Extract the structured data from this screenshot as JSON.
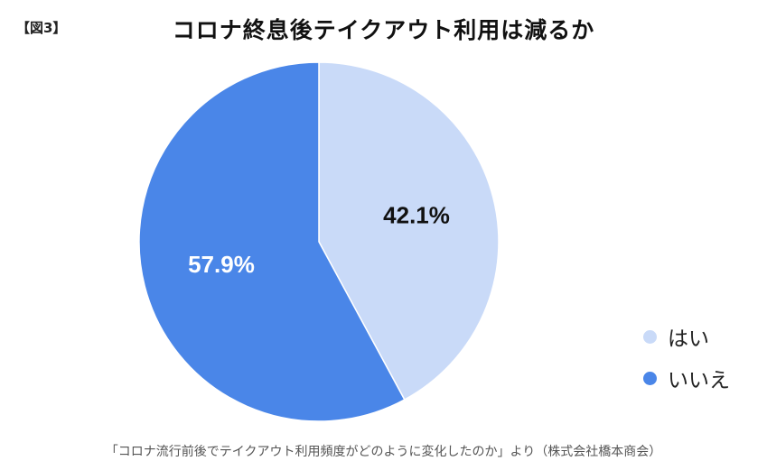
{
  "header": {
    "figure_tag": "【図3】",
    "title": "コロナ終息後テイクアウト利用は減るか"
  },
  "footer": {
    "source": "「コロナ流行前後でテイクアウト利用頻度がどのように変化したのか」より（株式会社橋本商会）"
  },
  "chart_data": {
    "type": "pie",
    "title": "コロナ終息後テイクアウト利用は減るか",
    "slices": [
      {
        "label": "はい",
        "value": 42.1,
        "display": "42.1%",
        "color": "#c9daf8",
        "label_color": "#111111"
      },
      {
        "label": "いいえ",
        "value": 57.9,
        "display": "57.9%",
        "color": "#4a86e8",
        "label_color": "#ffffff"
      }
    ],
    "start_angle": "12 o'clock",
    "direction": "clockwise",
    "legend_position": "right"
  }
}
